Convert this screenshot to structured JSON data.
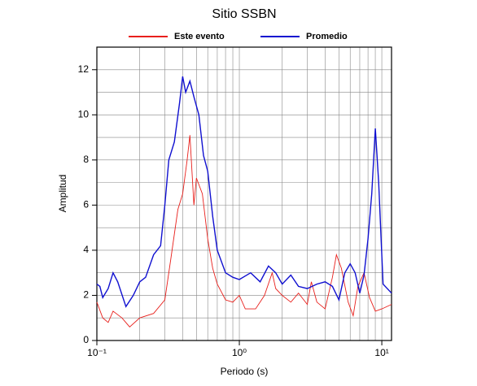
{
  "chart_data": {
    "type": "line",
    "title": "Sitio SSBN",
    "xlabel": "Periodo (s)",
    "ylabel": "Amplitud",
    "xscale": "log",
    "grid": true,
    "legend": "top",
    "xlim": [
      0.1,
      11.7
    ],
    "ylim": [
      0,
      13
    ],
    "xticks": [
      {
        "value": 0.1,
        "label": "10⁻¹"
      },
      {
        "value": 1,
        "label": "10⁰"
      },
      {
        "value": 10,
        "label": "10¹"
      }
    ],
    "xminor": [
      0.2,
      0.3,
      0.4,
      0.5,
      0.6,
      0.7,
      0.8,
      0.9,
      2,
      3,
      4,
      5,
      6,
      7,
      8,
      9
    ],
    "yticks": [
      0,
      2,
      4,
      6,
      8,
      10,
      12
    ],
    "yminor": [
      1,
      3,
      5,
      7,
      9,
      11
    ],
    "series": [
      {
        "name": "Este evento",
        "color": "#e8201c",
        "x": [
          0.1,
          0.11,
          0.12,
          0.13,
          0.15,
          0.17,
          0.2,
          0.25,
          0.3,
          0.33,
          0.37,
          0.4,
          0.43,
          0.45,
          0.48,
          0.5,
          0.55,
          0.6,
          0.65,
          0.7,
          0.8,
          0.9,
          1.0,
          1.1,
          1.3,
          1.5,
          1.7,
          1.8,
          2.0,
          2.3,
          2.6,
          3.0,
          3.2,
          3.5,
          4.0,
          4.5,
          4.8,
          5.2,
          5.8,
          6.3,
          6.8,
          7.5,
          8.2,
          9,
          10,
          11.7
        ],
        "values": [
          1.7,
          1.0,
          0.8,
          1.3,
          1.0,
          0.6,
          1.0,
          1.2,
          1.8,
          3.6,
          5.8,
          6.5,
          8.0,
          9.1,
          6.0,
          7.2,
          6.5,
          4.5,
          3.2,
          2.5,
          1.8,
          1.7,
          2.0,
          1.4,
          1.4,
          2.0,
          3.0,
          2.3,
          2.0,
          1.7,
          2.1,
          1.6,
          2.6,
          1.7,
          1.4,
          2.8,
          3.8,
          3.2,
          1.7,
          1.1,
          2.4,
          3.0,
          1.9,
          1.3,
          1.4,
          1.6
        ]
      },
      {
        "name": "Promedio",
        "color": "#1010d0",
        "x": [
          0.1,
          0.105,
          0.11,
          0.12,
          0.13,
          0.14,
          0.16,
          0.18,
          0.2,
          0.22,
          0.25,
          0.28,
          0.3,
          0.32,
          0.35,
          0.38,
          0.4,
          0.42,
          0.45,
          0.48,
          0.52,
          0.56,
          0.6,
          0.65,
          0.7,
          0.8,
          0.9,
          1.0,
          1.2,
          1.4,
          1.6,
          1.8,
          2.0,
          2.3,
          2.6,
          3.0,
          3.5,
          4.0,
          4.5,
          5.0,
          5.5,
          6.0,
          6.5,
          7.0,
          7.5,
          8.0,
          8.5,
          9.0,
          9.5,
          10.2,
          11.7
        ],
        "values": [
          2.5,
          2.4,
          1.9,
          2.3,
          3.0,
          2.6,
          1.5,
          2.0,
          2.6,
          2.8,
          3.8,
          4.2,
          6.0,
          8.0,
          8.8,
          10.5,
          11.7,
          11.0,
          11.5,
          10.8,
          10.0,
          8.2,
          7.5,
          5.5,
          4.0,
          3.0,
          2.8,
          2.7,
          3.0,
          2.6,
          3.3,
          3.0,
          2.5,
          2.9,
          2.4,
          2.3,
          2.5,
          2.6,
          2.4,
          1.8,
          3.0,
          3.4,
          3.0,
          2.1,
          2.9,
          4.5,
          6.5,
          9.4,
          7.0,
          2.5,
          2.1
        ]
      }
    ]
  }
}
